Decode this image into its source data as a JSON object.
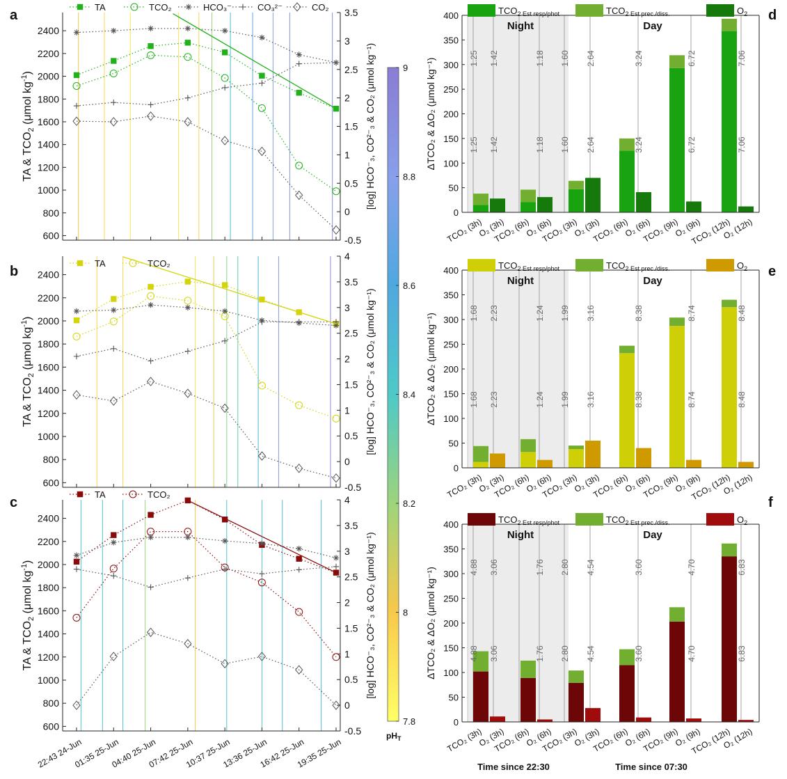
{
  "figure": {
    "panel_labels": [
      "a",
      "b",
      "c",
      "d",
      "e",
      "f"
    ],
    "colorbar": {
      "label": "pH",
      "label_sub": "T",
      "ticks": [
        "7.8",
        "8",
        "8.2",
        "8.4",
        "8.6",
        "8.8",
        "9"
      ],
      "min": 7.8,
      "max": 9.0
    },
    "time_axis_labels": [
      "22:43 24-Jun",
      "01:35 25-Jun",
      "04:40 25-Jun",
      "07:42 25-Jun",
      "10:37 25-Jun",
      "13:36 25-Jun",
      "16:42 25-Jun",
      "19:35 25-Jun"
    ],
    "time_since_labels": [
      "Time since 22:30",
      "Time since 07:30"
    ],
    "left_ylabel": "TA & TCO",
    "left_ylabel_sub": "2",
    "left_ylabel_unit": " (μmol kg",
    "left_ylabel_tail": ")",
    "right_ylabel": "[log] HCO⁻₃, CO²⁻₃ & CO₂ (μmol kg⁻¹)",
    "bar_ylabel": "ΔTCO₂ & ΔO₂ (μmol kg⁻¹)",
    "night_label": "Night",
    "day_label": "Day",
    "bar_categories": [
      [
        "TCO₂ (3h)",
        "O₂ (3h)"
      ],
      [
        "TCO₂ (6h)",
        "O₂ (6h)"
      ],
      [
        "TCO₂ (3h)",
        "O₂ (3h)"
      ],
      [
        "TCO₂ (6h)",
        "O₂ (6h)"
      ],
      [
        "TCO₂ (9h)",
        "O₂ (9h)"
      ],
      [
        "TCO₂ (12h)",
        "O₂ (12h)"
      ]
    ]
  },
  "chart_data": [
    {
      "panel": "a",
      "type": "line",
      "x": [
        "22:43 24-Jun",
        "01:35 25-Jun",
        "04:40 25-Jun",
        "07:42 25-Jun",
        "10:37 25-Jun",
        "13:36 25-Jun",
        "16:42 25-Jun",
        "19:35 25-Jun"
      ],
      "ylim_left": [
        560,
        2560
      ],
      "ylim_right": [
        -0.5,
        3.5
      ],
      "yticks_left": [
        600,
        800,
        1000,
        1200,
        1400,
        1600,
        1800,
        2000,
        2200,
        2400
      ],
      "yticks_right": [
        -0.5,
        0,
        0.5,
        1,
        1.5,
        2,
        2.5,
        3,
        3.5
      ],
      "color": "#22b11c",
      "legend": [
        "TA",
        "TCO₂",
        "HCO₃⁻",
        "CO₃²⁻",
        "CO₂"
      ],
      "series": [
        {
          "name": "TA",
          "axis": "left",
          "values": [
            2010,
            2135,
            2265,
            2295,
            2210,
            2005,
            1855,
            1715
          ]
        },
        {
          "name": "TCO₂",
          "axis": "left",
          "values": [
            1915,
            2025,
            2185,
            2170,
            1985,
            1720,
            1215,
            990
          ]
        },
        {
          "name": "HCO₃⁻",
          "axis": "right",
          "values": [
            3.15,
            3.18,
            3.22,
            3.22,
            3.18,
            3.06,
            2.76,
            2.62
          ]
        },
        {
          "name": "CO₃²⁻",
          "axis": "right",
          "values": [
            1.86,
            1.92,
            1.88,
            2.0,
            2.18,
            2.26,
            2.6,
            2.62
          ]
        },
        {
          "name": "CO₂",
          "axis": "right",
          "values": [
            1.59,
            1.58,
            1.68,
            1.58,
            1.25,
            1.06,
            0.29,
            -0.32
          ]
        }
      ],
      "regression_left": {
        "x_from": 2.6,
        "y_from": 2550,
        "x_to": 7,
        "y_to": 1715
      },
      "ph_lines": [
        {
          "t": 0.05,
          "ph": 8.02
        },
        {
          "t": 0.75,
          "ph": 7.95
        },
        {
          "t": 1.45,
          "ph": 7.9
        },
        {
          "t": 2.75,
          "ph": 7.9
        },
        {
          "t": 3.3,
          "ph": 7.95
        },
        {
          "t": 3.65,
          "ph": 8.2
        },
        {
          "t": 4.15,
          "ph": 8.5
        },
        {
          "t": 4.75,
          "ph": 8.65
        },
        {
          "t": 5.3,
          "ph": 8.8
        },
        {
          "t": 5.75,
          "ph": 8.85
        },
        {
          "t": 6.9,
          "ph": 8.9
        }
      ]
    },
    {
      "panel": "b",
      "type": "line",
      "x": [
        "22:43 24-Jun",
        "01:35 25-Jun",
        "04:40 25-Jun",
        "07:42 25-Jun",
        "10:37 25-Jun",
        "13:36 25-Jun",
        "16:42 25-Jun",
        "19:35 25-Jun"
      ],
      "ylim_left": [
        560,
        2560
      ],
      "ylim_right": [
        -0.5,
        4
      ],
      "yticks_left": [
        600,
        800,
        1000,
        1200,
        1400,
        1600,
        1800,
        2000,
        2200,
        2400
      ],
      "yticks_right": [
        -0.5,
        0,
        0.5,
        1,
        1.5,
        2,
        2.5,
        3,
        3.5,
        4
      ],
      "color": "#d4d40c",
      "legend": [
        "TA",
        "TCO₂"
      ],
      "series": [
        {
          "name": "TA",
          "axis": "left",
          "values": [
            2005,
            2190,
            2295,
            2340,
            2310,
            2185,
            2075,
            1975
          ]
        },
        {
          "name": "TCO₂",
          "axis": "left",
          "values": [
            1865,
            1995,
            2215,
            2175,
            2040,
            1440,
            1270,
            1155
          ]
        },
        {
          "name": "HCO₃⁻",
          "axis": "right",
          "values": [
            2.93,
            2.95,
            3.05,
            3.0,
            2.93,
            2.75,
            2.7,
            2.65
          ]
        },
        {
          "name": "CO₃²⁻",
          "axis": "right",
          "values": [
            2.05,
            2.2,
            1.96,
            2.15,
            2.35,
            2.72,
            2.72,
            2.72
          ]
        },
        {
          "name": "CO₂",
          "axis": "right",
          "values": [
            1.3,
            1.18,
            1.56,
            1.33,
            1.04,
            0.11,
            -0.13,
            -0.32
          ]
        }
      ],
      "regression_left": {
        "x_from": 1.25,
        "y_from": 2555,
        "x_to": 7,
        "y_to": 1975
      },
      "ph_lines": [
        {
          "t": 0.55,
          "ph": 7.95
        },
        {
          "t": 1.25,
          "ph": 7.95
        },
        {
          "t": 3.2,
          "ph": 7.9
        },
        {
          "t": 3.7,
          "ph": 8.05
        },
        {
          "t": 4.05,
          "ph": 8.25
        },
        {
          "t": 4.35,
          "ph": 8.35
        },
        {
          "t": 4.9,
          "ph": 8.55
        },
        {
          "t": 5.45,
          "ph": 8.85
        },
        {
          "t": 6.85,
          "ph": 8.9
        }
      ]
    },
    {
      "panel": "c",
      "type": "line",
      "x": [
        "22:43 24-Jun",
        "01:35 25-Jun",
        "04:40 25-Jun",
        "07:42 25-Jun",
        "10:37 25-Jun",
        "13:36 25-Jun",
        "16:42 25-Jun",
        "19:35 25-Jun"
      ],
      "ylim_left": [
        560,
        2560
      ],
      "ylim_right": [
        -0.5,
        4
      ],
      "yticks_left": [
        600,
        800,
        1000,
        1200,
        1400,
        1600,
        1800,
        2000,
        2200,
        2400
      ],
      "yticks_right": [
        -0.5,
        0,
        0.5,
        1,
        1.5,
        2,
        2.5,
        3,
        3.5,
        4
      ],
      "color": "#8a0a0a",
      "legend": [
        "TA",
        "TCO₂"
      ],
      "series": [
        {
          "name": "TA",
          "axis": "left",
          "values": [
            2025,
            2255,
            2430,
            2555,
            2390,
            2170,
            2050,
            1930
          ]
        },
        {
          "name": "TCO₂",
          "axis": "left",
          "values": [
            1540,
            1965,
            2285,
            2285,
            1975,
            1845,
            1590,
            1200
          ]
        },
        {
          "name": "HCO₃⁻",
          "axis": "right",
          "values": [
            2.92,
            3.17,
            3.27,
            3.27,
            3.2,
            3.15,
            3.05,
            2.87
          ]
        },
        {
          "name": "CO₃²⁻",
          "axis": "right",
          "values": [
            2.65,
            2.52,
            2.3,
            2.48,
            2.65,
            2.56,
            2.64,
            2.7
          ]
        },
        {
          "name": "CO₂",
          "axis": "right",
          "values": [
            0.0,
            0.95,
            1.42,
            1.2,
            0.81,
            0.95,
            0.69,
            0.0
          ]
        }
      ],
      "regression_left": {
        "x_from": 3.0,
        "y_from": 2555,
        "x_to": 7,
        "y_to": 1930
      },
      "ph_lines": [
        {
          "t": 0.12,
          "ph": 8.4
        },
        {
          "t": 0.7,
          "ph": 8.45
        },
        {
          "t": 1.25,
          "ph": 8.45
        },
        {
          "t": 1.85,
          "ph": 8.2
        },
        {
          "t": 3.2,
          "ph": 8.0
        },
        {
          "t": 4.05,
          "ph": 8.4
        },
        {
          "t": 5.0,
          "ph": 8.4
        },
        {
          "t": 5.55,
          "ph": 8.45
        },
        {
          "t": 6.6,
          "ph": 8.5
        }
      ]
    },
    {
      "panel": "d",
      "type": "bar",
      "ylim": [
        0,
        400
      ],
      "yticks": [
        0,
        50,
        100,
        150,
        200,
        250,
        300,
        350,
        400
      ],
      "legend": [
        "TCO₂ Est resp/phot",
        "TCO₂ Est prec./diss.",
        "O₂"
      ],
      "colors": {
        "resp": "#1aa311",
        "prec": "#72af31",
        "o2": "#157a0b"
      },
      "tco2_resp": [
        15,
        21,
        47,
        125,
        293,
        368
      ],
      "tco2_prec": [
        23,
        25,
        17,
        25,
        26,
        25
      ],
      "o2": [
        28,
        31,
        70,
        41,
        22,
        12
      ],
      "ratios": [
        "1.25",
        "1.42",
        "1.18",
        "1.60",
        "2.64",
        "3.24",
        "6.72",
        "7.06"
      ]
    },
    {
      "panel": "e",
      "type": "bar",
      "ylim": [
        0,
        400
      ],
      "yticks": [
        0,
        50,
        100,
        150,
        200,
        250,
        300,
        350,
        400
      ],
      "legend": [
        "TCO₂ Est resp/phot",
        "TCO₂ Est prec./diss.",
        "O₂"
      ],
      "colors": {
        "resp": "#cfcf08",
        "prec": "#72af31",
        "o2": "#cf9a00"
      },
      "tco2_resp": [
        12,
        32,
        38,
        232,
        287,
        325
      ],
      "tco2_prec": [
        32,
        26,
        7,
        15,
        17,
        15
      ],
      "o2": [
        29,
        16,
        55,
        40,
        16,
        12
      ],
      "ratios": [
        "1.68",
        "2.23",
        "1.24",
        "1.99",
        "3.16",
        "8.38",
        "8.74",
        "8.48"
      ]
    },
    {
      "panel": "f",
      "type": "bar",
      "ylim": [
        0,
        400
      ],
      "yticks": [
        0,
        50,
        100,
        150,
        200,
        250,
        300,
        350,
        400
      ],
      "legend": [
        "TCO₂ Est resp/phot",
        "TCO₂ Est prec./diss.",
        "O₂"
      ],
      "colors": {
        "resp": "#6d0606",
        "prec": "#72af31",
        "o2": "#a00c0c"
      },
      "tco2_resp": [
        102,
        89,
        79,
        115,
        203,
        335
      ],
      "tco2_prec": [
        41,
        35,
        25,
        32,
        29,
        26
      ],
      "o2": [
        11,
        5,
        28,
        9,
        7,
        4
      ],
      "ratios": [
        "4.88",
        "3.06",
        "1.76",
        "2.80",
        "4.54",
        "3.60",
        "4.70",
        "6.83"
      ]
    }
  ]
}
